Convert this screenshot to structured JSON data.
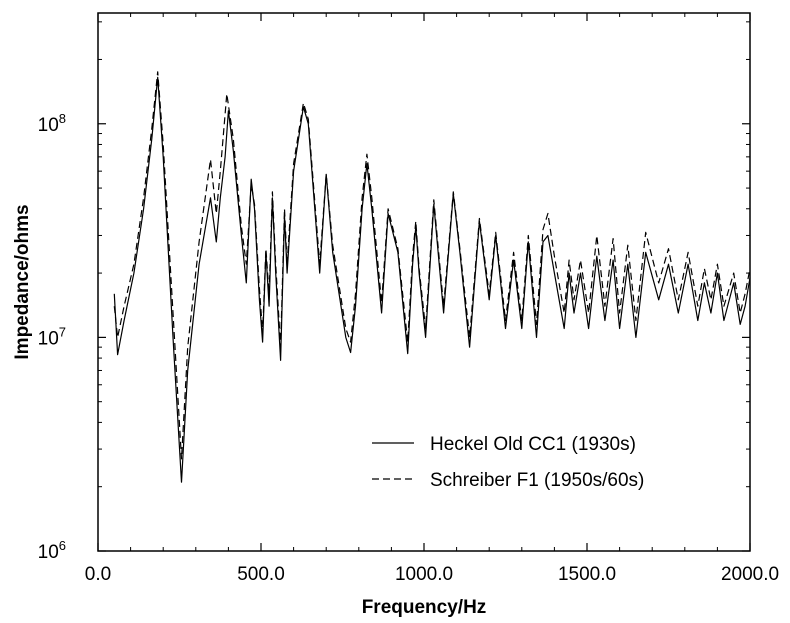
{
  "chart_data": {
    "type": "line",
    "title": "",
    "xlabel": "Frequency/Hz",
    "ylabel": "Impedance/ohms",
    "xlim": [
      0,
      2000
    ],
    "ylim": [
      1000000,
      330000000
    ],
    "yscale": "log",
    "x_ticks": [
      "0.0",
      "500.0",
      "1000.0",
      "1500.0",
      "2000.0"
    ],
    "y_ticks": [
      {
        "value": 1000000,
        "base": "10",
        "exp": "6"
      },
      {
        "value": 10000000,
        "base": "10",
        "exp": "7"
      },
      {
        "value": 100000000,
        "base": "10",
        "exp": "8"
      }
    ],
    "legend_position": "bottom-right",
    "series": [
      {
        "name": "Heckel Old CC1 (1930s)",
        "style": "solid",
        "color": "#000000",
        "points": [
          [
            50,
            16000000
          ],
          [
            60,
            8300000
          ],
          [
            80,
            12000000
          ],
          [
            110,
            20000000
          ],
          [
            140,
            40000000
          ],
          [
            165,
            85000000
          ],
          [
            183,
            165000000
          ],
          [
            200,
            70000000
          ],
          [
            230,
            10000000
          ],
          [
            256,
            2100000
          ],
          [
            275,
            7000000
          ],
          [
            310,
            22000000
          ],
          [
            345,
            45000000
          ],
          [
            363,
            28000000
          ],
          [
            375,
            45000000
          ],
          [
            390,
            70000000
          ],
          [
            400,
            115000000
          ],
          [
            415,
            75000000
          ],
          [
            440,
            30000000
          ],
          [
            455,
            18000000
          ],
          [
            470,
            55000000
          ],
          [
            480,
            40000000
          ],
          [
            495,
            15000000
          ],
          [
            505,
            9500000
          ],
          [
            515,
            25000000
          ],
          [
            525,
            14000000
          ],
          [
            535,
            45000000
          ],
          [
            545,
            20000000
          ],
          [
            560,
            7800000
          ],
          [
            572,
            37000000
          ],
          [
            580,
            20000000
          ],
          [
            600,
            60000000
          ],
          [
            630,
            120000000
          ],
          [
            645,
            100000000
          ],
          [
            680,
            20000000
          ],
          [
            700,
            58000000
          ],
          [
            720,
            25000000
          ],
          [
            760,
            10000000
          ],
          [
            775,
            8500000
          ],
          [
            790,
            14000000
          ],
          [
            810,
            40000000
          ],
          [
            825,
            65000000
          ],
          [
            840,
            40000000
          ],
          [
            870,
            13000000
          ],
          [
            890,
            38000000
          ],
          [
            920,
            25000000
          ],
          [
            950,
            8400000
          ],
          [
            965,
            22000000
          ],
          [
            975,
            33000000
          ],
          [
            985,
            20000000
          ],
          [
            1005,
            10000000
          ],
          [
            1030,
            42000000
          ],
          [
            1060,
            13000000
          ],
          [
            1090,
            47000000
          ],
          [
            1110,
            25000000
          ],
          [
            1140,
            9000000
          ],
          [
            1170,
            35000000
          ],
          [
            1200,
            15000000
          ],
          [
            1220,
            30000000
          ],
          [
            1250,
            11000000
          ],
          [
            1275,
            23000000
          ],
          [
            1300,
            11000000
          ],
          [
            1320,
            28000000
          ],
          [
            1345,
            10000000
          ],
          [
            1365,
            28000000
          ],
          [
            1380,
            30000000
          ],
          [
            1400,
            20000000
          ],
          [
            1430,
            11000000
          ],
          [
            1445,
            20000000
          ],
          [
            1460,
            13000000
          ],
          [
            1480,
            20000000
          ],
          [
            1505,
            11000000
          ],
          [
            1530,
            24000000
          ],
          [
            1555,
            12000000
          ],
          [
            1580,
            23000000
          ],
          [
            1600,
            11000000
          ],
          [
            1625,
            22000000
          ],
          [
            1650,
            10000000
          ],
          [
            1680,
            25000000
          ],
          [
            1720,
            15000000
          ],
          [
            1750,
            22000000
          ],
          [
            1780,
            13000000
          ],
          [
            1810,
            22000000
          ],
          [
            1840,
            12000000
          ],
          [
            1860,
            18000000
          ],
          [
            1880,
            13000000
          ],
          [
            1900,
            20000000
          ],
          [
            1920,
            12000000
          ],
          [
            1950,
            18000000
          ],
          [
            1970,
            11500000
          ],
          [
            1985,
            14000000
          ],
          [
            2000,
            19000000
          ]
        ]
      },
      {
        "name": "Schreiber F1 (1950s/60s)",
        "style": "dashed",
        "color": "#000000",
        "points": [
          [
            50,
            14000000
          ],
          [
            60,
            10000000
          ],
          [
            80,
            14000000
          ],
          [
            110,
            22000000
          ],
          [
            140,
            45000000
          ],
          [
            165,
            95000000
          ],
          [
            183,
            175000000
          ],
          [
            200,
            80000000
          ],
          [
            230,
            13000000
          ],
          [
            256,
            2700000
          ],
          [
            275,
            9000000
          ],
          [
            310,
            28000000
          ],
          [
            345,
            68000000
          ],
          [
            363,
            38000000
          ],
          [
            375,
            60000000
          ],
          [
            395,
            138000000
          ],
          [
            415,
            85000000
          ],
          [
            440,
            33000000
          ],
          [
            455,
            22000000
          ],
          [
            470,
            52000000
          ],
          [
            480,
            42000000
          ],
          [
            495,
            17000000
          ],
          [
            505,
            10500000
          ],
          [
            515,
            26000000
          ],
          [
            525,
            16000000
          ],
          [
            535,
            48000000
          ],
          [
            545,
            22000000
          ],
          [
            560,
            9000000
          ],
          [
            572,
            40000000
          ],
          [
            580,
            22000000
          ],
          [
            600,
            65000000
          ],
          [
            630,
            125000000
          ],
          [
            645,
            105000000
          ],
          [
            680,
            22000000
          ],
          [
            700,
            58000000
          ],
          [
            720,
            27000000
          ],
          [
            760,
            11000000
          ],
          [
            775,
            9500000
          ],
          [
            790,
            16000000
          ],
          [
            810,
            45000000
          ],
          [
            825,
            72000000
          ],
          [
            840,
            45000000
          ],
          [
            870,
            14500000
          ],
          [
            890,
            40000000
          ],
          [
            920,
            26000000
          ],
          [
            950,
            9500000
          ],
          [
            965,
            24000000
          ],
          [
            975,
            35000000
          ],
          [
            985,
            21000000
          ],
          [
            1005,
            11000000
          ],
          [
            1030,
            44000000
          ],
          [
            1060,
            14000000
          ],
          [
            1090,
            48000000
          ],
          [
            1110,
            26000000
          ],
          [
            1140,
            10000000
          ],
          [
            1170,
            36000000
          ],
          [
            1200,
            16000000
          ],
          [
            1220,
            31000000
          ],
          [
            1250,
            12000000
          ],
          [
            1275,
            25000000
          ],
          [
            1300,
            12000000
          ],
          [
            1320,
            30000000
          ],
          [
            1345,
            11500000
          ],
          [
            1365,
            32000000
          ],
          [
            1380,
            38000000
          ],
          [
            1400,
            24000000
          ],
          [
            1430,
            13000000
          ],
          [
            1445,
            23000000
          ],
          [
            1460,
            15000000
          ],
          [
            1480,
            23000000
          ],
          [
            1505,
            13000000
          ],
          [
            1530,
            30000000
          ],
          [
            1555,
            14000000
          ],
          [
            1580,
            29000000
          ],
          [
            1600,
            13000000
          ],
          [
            1625,
            27000000
          ],
          [
            1650,
            12000000
          ],
          [
            1680,
            31000000
          ],
          [
            1720,
            18000000
          ],
          [
            1750,
            26000000
          ],
          [
            1780,
            15000000
          ],
          [
            1810,
            25000000
          ],
          [
            1840,
            14000000
          ],
          [
            1860,
            21000000
          ],
          [
            1880,
            15000000
          ],
          [
            1900,
            22000000
          ],
          [
            1920,
            14000000
          ],
          [
            1950,
            20000000
          ],
          [
            1970,
            13000000
          ],
          [
            1985,
            16000000
          ],
          [
            2000,
            21000000
          ]
        ]
      }
    ]
  }
}
